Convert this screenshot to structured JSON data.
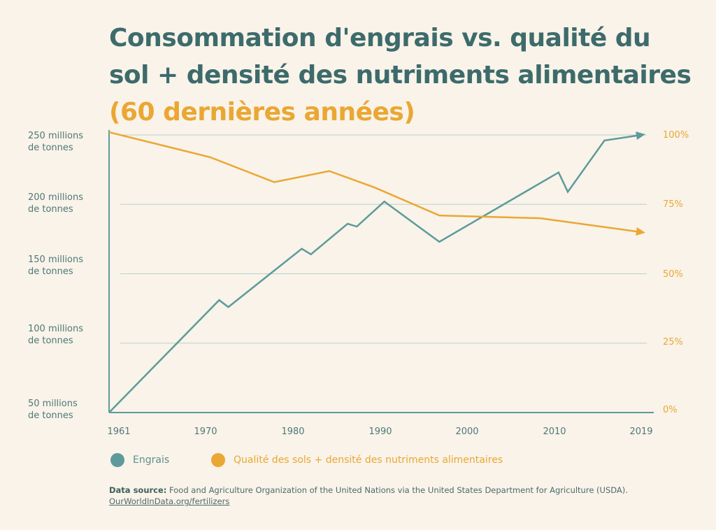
{
  "header": {
    "title_line1": "Consommation d'engrais vs. qualité du",
    "title_line2": "sol + densité des nutriments alimentaires",
    "title_line3": "(60 dernières années)"
  },
  "chart_data": {
    "type": "line",
    "title": "Consommation d'engrais vs. qualité du sol + densité des nutriments alimentaires (60 dernières années)",
    "x_ticks": [
      "1961",
      "1970",
      "1980",
      "1990",
      "2000",
      "2010",
      "2019"
    ],
    "xlim": [
      1961,
      2019
    ],
    "y_left": {
      "ticks": [
        {
          "value": 50,
          "label_line1": "50 millions",
          "label_line2": "de tonnes"
        },
        {
          "value": 100,
          "label_line1": "100 millions",
          "label_line2": "de tonnes"
        },
        {
          "value": 150,
          "label_line1": "150 millions",
          "label_line2": "de tonnes"
        },
        {
          "value": 200,
          "label_line1": "200 millions",
          "label_line2": "de tonnes"
        },
        {
          "value": 250,
          "label_line1": "250 millions",
          "label_line2": "de tonnes"
        }
      ],
      "ylim": [
        50,
        250
      ]
    },
    "y_right": {
      "ticks": [
        {
          "value": 0,
          "label": "0%"
        },
        {
          "value": 25,
          "label": "25%"
        },
        {
          "value": 50,
          "label": "50%"
        },
        {
          "value": 75,
          "label": "75%"
        },
        {
          "value": 100,
          "label": "100%"
        }
      ],
      "ylim": [
        0,
        100
      ]
    },
    "grid": true,
    "legend_position": "bottom-left",
    "series": [
      {
        "name": "Engrais",
        "axis": "left",
        "color": "#5d9b9b",
        "x": [
          1961,
          1973,
          1974,
          1982,
          1983,
          1987,
          1988,
          1991,
          1997,
          2010,
          2011,
          2015,
          2019
        ],
        "y": [
          50,
          131,
          126,
          168,
          164,
          186,
          184,
          202,
          173,
          223,
          209,
          246,
          250
        ]
      },
      {
        "name": "Qualité des sols + densité des nutriments alimentaires",
        "axis": "right",
        "color": "#eaa733",
        "x": [
          1961,
          1972,
          1979,
          1985,
          1990,
          1997,
          2008,
          2019
        ],
        "y": [
          101,
          92,
          83,
          87,
          81,
          71,
          70,
          65
        ]
      }
    ]
  },
  "legend": {
    "items": [
      {
        "label": "Engrais",
        "color": "#5d9b9b"
      },
      {
        "label": "Qualité des sols + densité des nutriments alimentaires",
        "color": "#eaa733"
      }
    ]
  },
  "source": {
    "label": "Data source:",
    "text": "Food and Agriculture Organization of the United Nations via the United States Department for Agriculture (USDA).",
    "link": "OurWorldInData.org/fertilizers"
  }
}
